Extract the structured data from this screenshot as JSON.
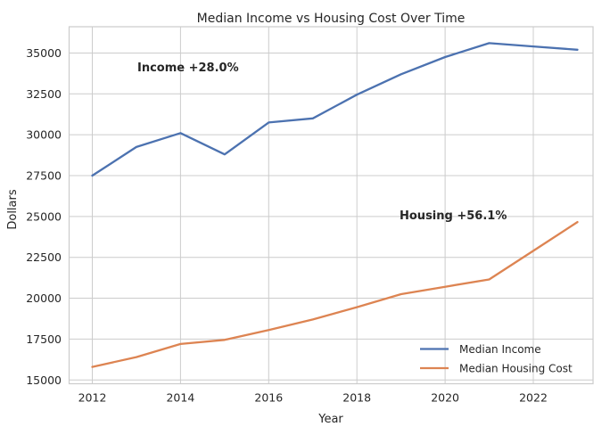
{
  "chart_data": {
    "type": "line",
    "title": "Median Income vs Housing Cost Over Time",
    "xlabel": "Year",
    "ylabel": "Dollars",
    "x": [
      2012,
      2013,
      2014,
      2015,
      2016,
      2017,
      2018,
      2019,
      2020,
      2021,
      2022,
      2023
    ],
    "series": [
      {
        "name": "Median Income",
        "color": "#4C72B0",
        "values": [
          27500,
          29250,
          30100,
          28800,
          30750,
          31000,
          32450,
          33700,
          34750,
          35600,
          35400,
          35200
        ]
      },
      {
        "name": "Median Housing Cost",
        "color": "#DD8452",
        "values": [
          15800,
          16400,
          17200,
          17450,
          18050,
          18700,
          19450,
          20250,
          20700,
          21150,
          22900,
          24660
        ]
      }
    ],
    "xticks": [
      "2012",
      "2014",
      "2016",
      "2018",
      "2020",
      "2022"
    ],
    "yticks": [
      "15000",
      "17500",
      "20000",
      "22500",
      "25000",
      "27500",
      "30000",
      "32500",
      "35000"
    ],
    "xlim": [
      2011.45,
      2023.55
    ],
    "ylim": [
      14770,
      36600
    ],
    "grid": true,
    "legend_position": "lower right",
    "annotations": [
      {
        "id": "income",
        "text": "Income +28.0%",
        "color": "#0000ee"
      },
      {
        "id": "housing",
        "text": "Housing +56.1%",
        "color": "#ffa500"
      }
    ],
    "axis_color": "#cccccc",
    "text_color": "#262626",
    "background": "#ffffff"
  }
}
